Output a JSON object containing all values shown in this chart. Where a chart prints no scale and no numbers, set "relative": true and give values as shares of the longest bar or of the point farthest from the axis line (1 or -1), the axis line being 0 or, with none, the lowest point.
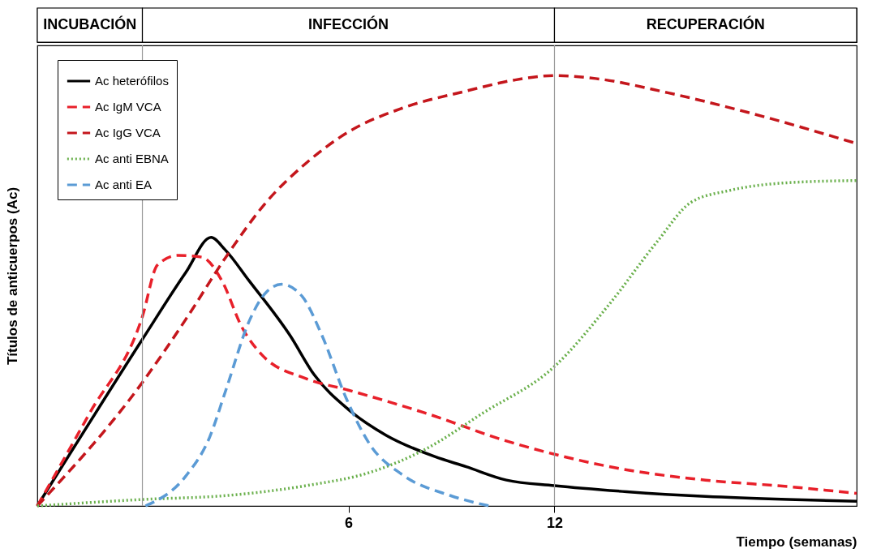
{
  "chart_data": {
    "type": "line",
    "relative": true,
    "xlabel": "Tiempo (semanas)",
    "ylabel": "Títulos de anticuerpos (Ac)",
    "xlim": [
      -3.06,
      20.8
    ],
    "xticks": [
      6,
      12
    ],
    "grid": false,
    "marker": "none",
    "legend": "top left",
    "ref_lines": [
      {
        "axis": "x",
        "value": 0,
        "color": "#999999"
      },
      {
        "axis": "x",
        "value": 12,
        "color": "#999999"
      }
    ],
    "annotations": [
      "INCUBACIÓN",
      "INFECCIÓN",
      "RECUPERACIÓN"
    ],
    "series": [
      {
        "name": "Ac heterófilos",
        "color": "#000000",
        "line_style": "solid",
        "x": [
          -3.06,
          0,
          1.26,
          2.0,
          2.4,
          3.1,
          4.3,
          5.0,
          6.0,
          7.1,
          8.5,
          9.43,
          10.6,
          12,
          14.1,
          16.4,
          18.8,
          20.8
        ],
        "values": [
          0,
          0.387,
          0.542,
          0.624,
          0.596,
          0.524,
          0.396,
          0.305,
          0.224,
          0.164,
          0.115,
          0.091,
          0.06,
          0.047,
          0.033,
          0.022,
          0.015,
          0.011
        ]
      },
      {
        "name": "Ac IgM VCA",
        "color": "#e8202a",
        "line_style": "dashed",
        "x": [
          -3.06,
          -1.54,
          0,
          0.44,
          1.03,
          1.73,
          2.31,
          2.9,
          3.48,
          4.76,
          6,
          8.27,
          10.6,
          12,
          14.1,
          16.4,
          18.8,
          20.8
        ],
        "values": [
          0,
          0.215,
          0.44,
          0.56,
          0.582,
          0.578,
          0.524,
          0.415,
          0.351,
          0.296,
          0.269,
          0.215,
          0.151,
          0.12,
          0.084,
          0.06,
          0.045,
          0.029
        ]
      },
      {
        "name": "Ac IgG VCA",
        "color": "#c4161c",
        "line_style": "dashed",
        "x": [
          -3.06,
          0,
          1.26,
          2.43,
          3.6,
          4.76,
          6,
          7.56,
          9.43,
          10.8,
          12,
          13.2,
          15.3,
          17.6,
          20.8
        ],
        "values": [
          0,
          0.287,
          0.433,
          0.578,
          0.705,
          0.796,
          0.869,
          0.924,
          0.964,
          0.989,
          1,
          0.993,
          0.96,
          0.915,
          0.842
        ]
      },
      {
        "name": "Ac anti EBNA",
        "color": "#6ab04c",
        "line_style": "dotted",
        "x": [
          -3.06,
          0,
          2.43,
          4.76,
          6.63,
          8.27,
          9.9,
          12,
          13.6,
          15.0,
          15.97,
          17.1,
          18.8,
          20.8
        ],
        "values": [
          0,
          0.015,
          0.024,
          0.047,
          0.078,
          0.133,
          0.215,
          0.324,
          0.469,
          0.615,
          0.705,
          0.733,
          0.751,
          0.756
        ]
      },
      {
        "name": "Ac anti EA",
        "color": "#5b9bd5",
        "line_style": "dashed",
        "x": [
          0.09,
          1.26,
          1.96,
          2.43,
          3.13,
          3.6,
          4.06,
          4.65,
          5.23,
          5.93,
          6.63,
          7.56,
          8.97,
          10.1
        ],
        "values": [
          0,
          0.069,
          0.16,
          0.269,
          0.433,
          0.496,
          0.515,
          0.487,
          0.396,
          0.251,
          0.142,
          0.073,
          0.024,
          0
        ]
      }
    ]
  }
}
